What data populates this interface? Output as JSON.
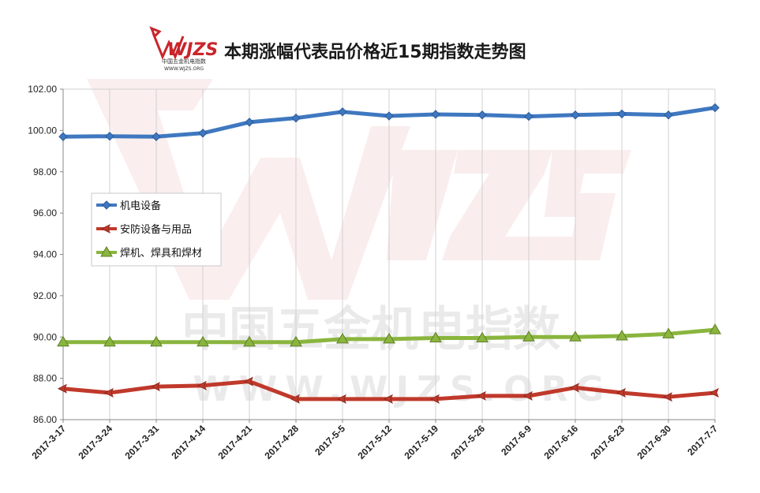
{
  "header": {
    "title": "本期涨幅代表品价格近15期指数走势图",
    "logo_text": "WJZS",
    "logo_sub1": "中国五金机电指数",
    "logo_sub2": "WWW.WJZS.ORG"
  },
  "watermark": {
    "cn": "中国五金机电指数",
    "url": "WWW.WJZS.ORG"
  },
  "colors": {
    "series": [
      "#3f78c0",
      "#c0392b",
      "#8ab53e"
    ],
    "grid": "#d0d0d0",
    "axis": "#888888"
  },
  "chart_data": {
    "type": "line",
    "title": "本期涨幅代表品价格近15期指数走势图",
    "xlabel": "",
    "ylabel": "",
    "ylim": [
      86,
      102
    ],
    "ytick_step": 2,
    "yticks": [
      "86.00",
      "88.00",
      "90.00",
      "92.00",
      "94.00",
      "96.00",
      "98.00",
      "100.00",
      "102.00"
    ],
    "grid": "vertical",
    "legend_position": "left-middle",
    "categories": [
      "2017-3-17",
      "2017-3-24",
      "2017-3-31",
      "2017-4-14",
      "2017-4-21",
      "2017-4-28",
      "2017-5-5",
      "2017-5-12",
      "2017-5-19",
      "2017-5-26",
      "2017-6-9",
      "2017-6-16",
      "2017-6-23",
      "2017-6-30",
      "2017-7-7"
    ],
    "series": [
      {
        "name": "机电设备",
        "marker": "diamond",
        "values": [
          99.7,
          99.72,
          99.7,
          99.87,
          100.4,
          100.6,
          100.9,
          100.7,
          100.78,
          100.75,
          100.68,
          100.75,
          100.8,
          100.75,
          101.1
        ]
      },
      {
        "name": "安防设备与用品",
        "marker": "arrow",
        "values": [
          87.5,
          87.3,
          87.6,
          87.65,
          87.85,
          87.0,
          87.0,
          87.0,
          87.0,
          87.15,
          87.15,
          87.55,
          87.3,
          87.1,
          87.3
        ]
      },
      {
        "name": "焊机、焊具和焊材",
        "marker": "triangle",
        "values": [
          89.75,
          89.75,
          89.75,
          89.75,
          89.75,
          89.75,
          89.9,
          89.9,
          89.95,
          89.95,
          90.0,
          90.0,
          90.05,
          90.15,
          90.35
        ]
      }
    ]
  }
}
